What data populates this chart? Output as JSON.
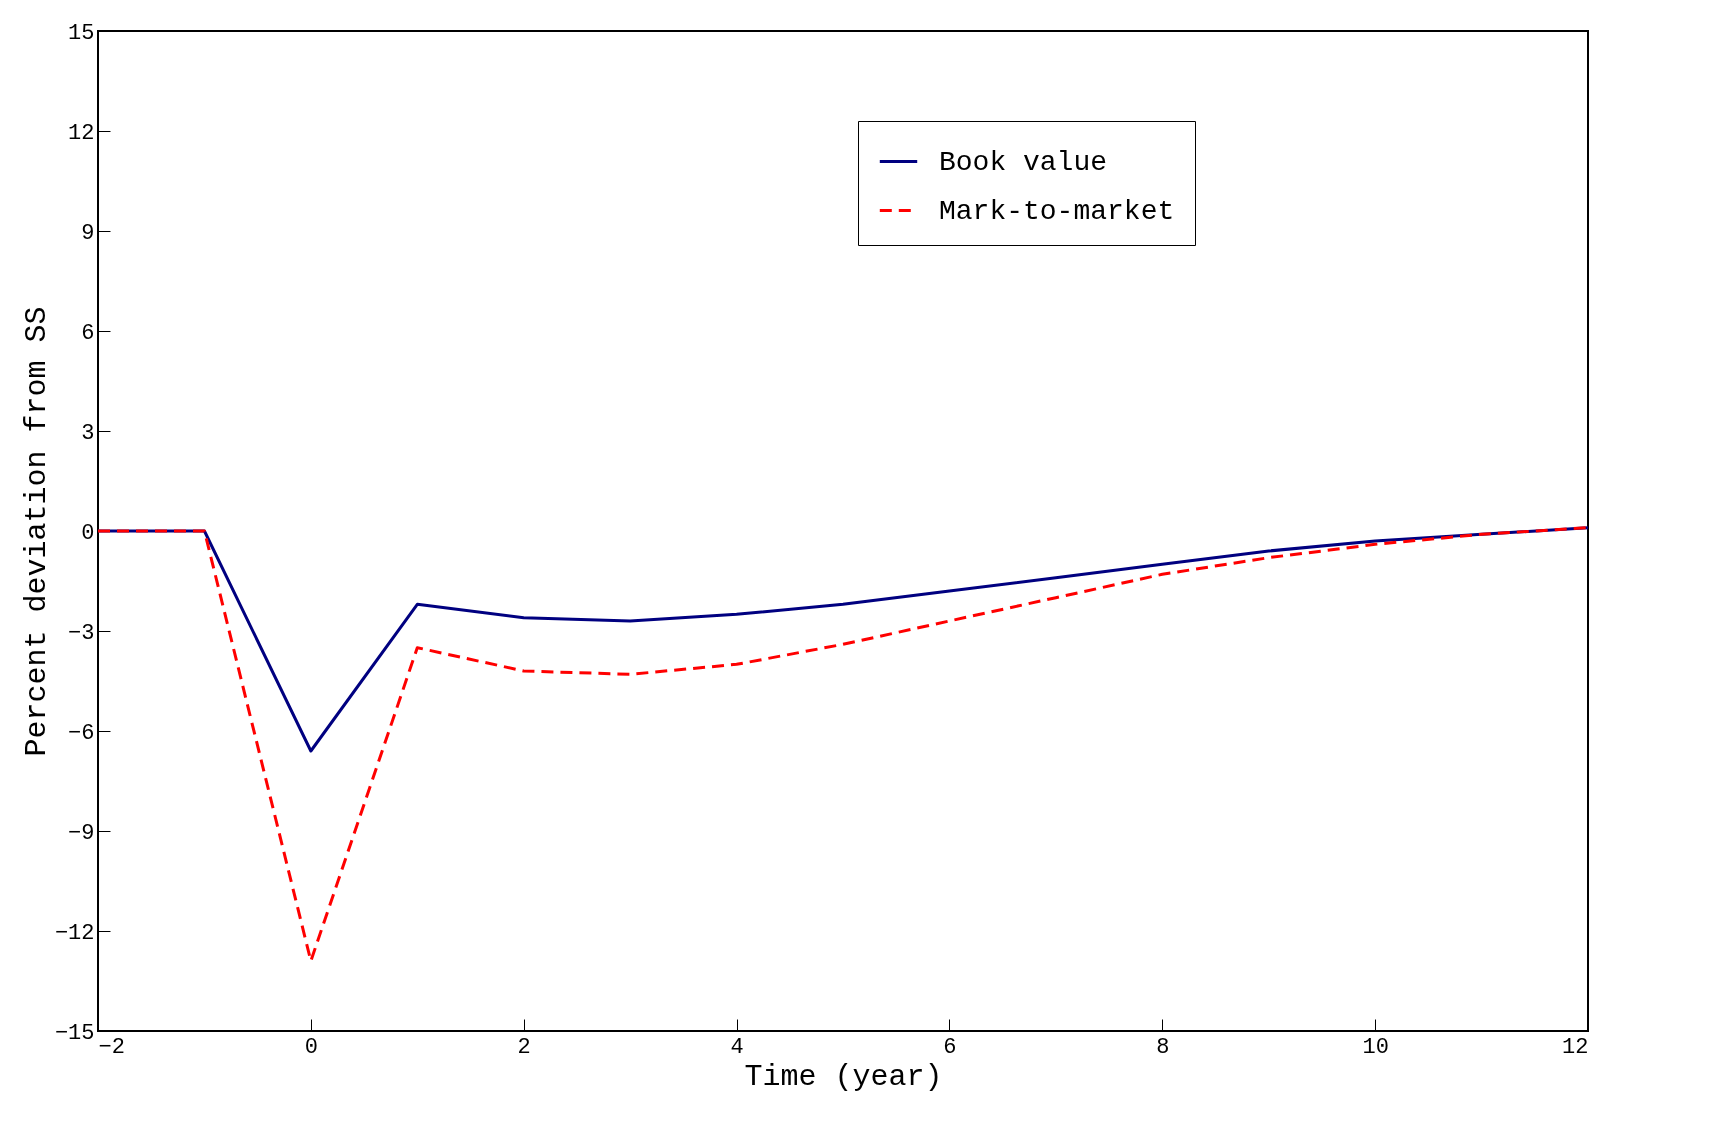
{
  "chart_data": {
    "type": "line",
    "xlabel": "Time (year)",
    "ylabel": "Percent deviation from SS",
    "xlim": [
      -2,
      12
    ],
    "xticks": [
      -2,
      0,
      2,
      4,
      6,
      8,
      10,
      12
    ],
    "ylim": [
      -15,
      15
    ],
    "yticks": [
      -15,
      -12,
      -9,
      -6,
      -3,
      0,
      3,
      6,
      9,
      12,
      15
    ],
    "grid": false,
    "legend": "top right",
    "marker": "none",
    "x": [
      -2,
      -1,
      0,
      1,
      2,
      3,
      4,
      5,
      6,
      7,
      8,
      9,
      10,
      11,
      12
    ],
    "series": [
      {
        "name": "Book value",
        "color": "#000080",
        "line_style": "solid",
        "values": [
          0,
          0,
          -6.6,
          -2.2,
          -2.6,
          -2.7,
          -2.5,
          -2.2,
          -1.8,
          -1.4,
          -1.0,
          -0.6,
          -0.3,
          -0.1,
          0.1
        ]
      },
      {
        "name": "Mark-to-market",
        "color": "#ff0000",
        "line_style": "dashed",
        "values": [
          0,
          0,
          -12.9,
          -3.5,
          -4.2,
          -4.3,
          -4.0,
          -3.4,
          -2.7,
          -2.0,
          -1.3,
          -0.8,
          -0.4,
          -0.1,
          0.1
        ]
      }
    ]
  }
}
